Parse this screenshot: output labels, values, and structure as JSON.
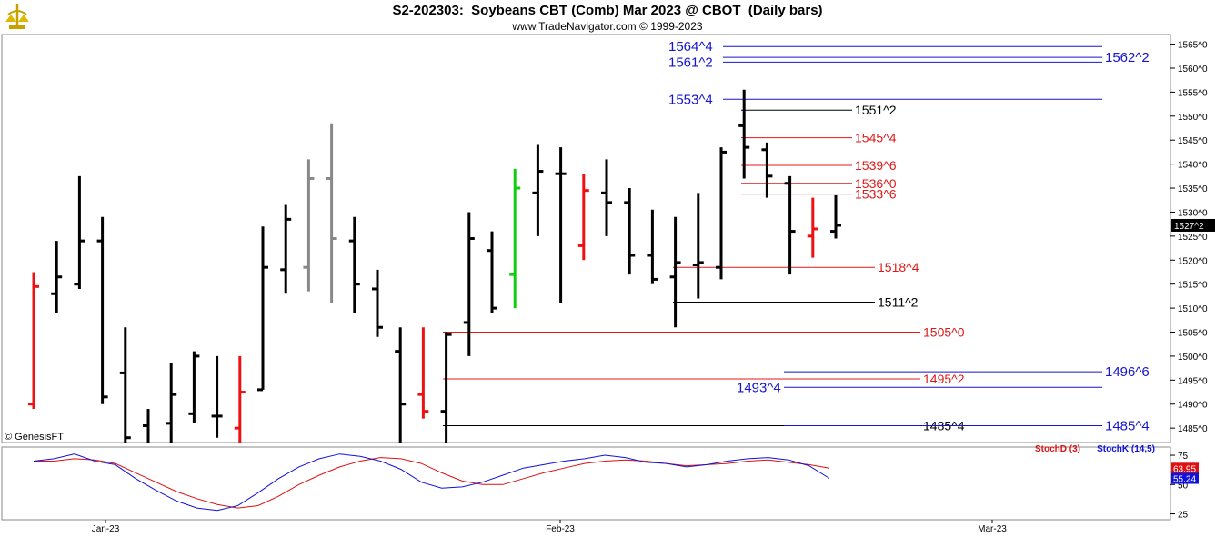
{
  "header": {
    "title": "S2-202303:  Soybeans CBT (Comb) Mar 2023 @ CBOT  (Daily bars)",
    "subtitle": "www.TradeNavigator.com © 1999-2023",
    "copyright": "© GenesisFT"
  },
  "chart_data": [
    {
      "type": "ohlc",
      "price_format": "cents^eighths",
      "ylim": [
        1482.0,
        1567.0
      ],
      "yticks": [
        "1565^0",
        "1560^0",
        "1555^0",
        "1550^0",
        "1545^0",
        "1540^0",
        "1535^0",
        "1530^0",
        "1525^0",
        "1520^0",
        "1515^0",
        "1510^0",
        "1505^0",
        "1500^0",
        "1495^0",
        "1490^0",
        "1485^0"
      ],
      "ytick_values": [
        1565,
        1560,
        1555,
        1550,
        1545,
        1540,
        1535,
        1530,
        1525,
        1520,
        1515,
        1510,
        1505,
        1500,
        1495,
        1490,
        1485
      ],
      "last_price_label": "1527^2",
      "last_price": 1527.25,
      "bar_colors": {
        "normal": "#000000",
        "red": "#ee1111",
        "green": "#11cc11",
        "gray": "#888888"
      },
      "bars": [
        {
          "o": 1490.0,
          "h": 1517.5,
          "l": 1489.0,
          "c": 1514.5,
          "color": "red"
        },
        {
          "o": 1513.0,
          "h": 1524.0,
          "l": 1509.0,
          "c": 1516.5,
          "color": "normal"
        },
        {
          "o": 1515.0,
          "h": 1537.5,
          "l": 1514.0,
          "c": 1524.0,
          "color": "normal"
        },
        {
          "o": 1524.0,
          "h": 1529.0,
          "l": 1490.0,
          "c": 1491.5,
          "color": "normal"
        },
        {
          "o": 1496.5,
          "h": 1506.0,
          "l": 1474.0,
          "c": 1483.0,
          "color": "normal"
        },
        {
          "o": 1485.5,
          "h": 1489.0,
          "l": 1475.0,
          "c": 1479.0,
          "color": "normal"
        },
        {
          "o": 1486.0,
          "h": 1498.5,
          "l": 1478.0,
          "c": 1492.0,
          "color": "normal"
        },
        {
          "o": 1488.0,
          "h": 1501.0,
          "l": 1486.0,
          "c": 1500.0,
          "color": "normal"
        },
        {
          "o": 1487.5,
          "h": 1500.0,
          "l": 1483.0,
          "c": 1487.5,
          "color": "normal"
        },
        {
          "o": 1485.0,
          "h": 1500.0,
          "l": 1476.0,
          "c": 1492.5,
          "color": "red"
        },
        {
          "o": 1493.0,
          "h": 1527.0,
          "l": 1493.0,
          "c": 1518.5,
          "color": "normal"
        },
        {
          "o": 1518.0,
          "h": 1531.5,
          "l": 1513.0,
          "c": 1528.5,
          "color": "normal"
        },
        {
          "o": 1518.5,
          "h": 1541.0,
          "l": 1513.5,
          "c": 1537.0,
          "color": "gray"
        },
        {
          "o": 1537.0,
          "h": 1548.5,
          "l": 1511.0,
          "c": 1524.5,
          "color": "gray"
        },
        {
          "o": 1524.0,
          "h": 1529.0,
          "l": 1509.0,
          "c": 1515.0,
          "color": "normal"
        },
        {
          "o": 1514.0,
          "h": 1518.0,
          "l": 1504.0,
          "c": 1506.0,
          "color": "normal"
        },
        {
          "o": 1501.0,
          "h": 1506.0,
          "l": 1480.0,
          "c": 1490.0,
          "color": "normal"
        },
        {
          "o": 1492.0,
          "h": 1506.0,
          "l": 1487.0,
          "c": 1488.5,
          "color": "red"
        },
        {
          "o": 1488.5,
          "h": 1505.0,
          "l": 1482.0,
          "c": 1504.5,
          "color": "normal"
        },
        {
          "o": 1507.0,
          "h": 1530.0,
          "l": 1500.0,
          "c": 1524.5,
          "color": "normal"
        },
        {
          "o": 1522.0,
          "h": 1526.0,
          "l": 1509.0,
          "c": 1510.0,
          "color": "normal"
        },
        {
          "o": 1517.0,
          "h": 1539.0,
          "l": 1510.0,
          "c": 1535.0,
          "color": "green"
        },
        {
          "o": 1534.0,
          "h": 1544.0,
          "l": 1525.0,
          "c": 1538.5,
          "color": "normal"
        },
        {
          "o": 1538.0,
          "h": 1543.5,
          "l": 1511.0,
          "c": 1538.0,
          "color": "normal"
        },
        {
          "o": 1523.0,
          "h": 1538.0,
          "l": 1520.0,
          "c": 1534.5,
          "color": "red"
        },
        {
          "o": 1534.0,
          "h": 1541.0,
          "l": 1525.0,
          "c": 1532.0,
          "color": "normal"
        },
        {
          "o": 1532.0,
          "h": 1535.0,
          "l": 1517.0,
          "c": 1521.0,
          "color": "normal"
        },
        {
          "o": 1521.0,
          "h": 1530.5,
          "l": 1515.0,
          "c": 1516.0,
          "color": "normal"
        },
        {
          "o": 1516.5,
          "h": 1529.0,
          "l": 1506.0,
          "c": 1519.5,
          "color": "normal"
        },
        {
          "o": 1519.0,
          "h": 1534.0,
          "l": 1512.0,
          "c": 1519.5,
          "color": "normal"
        },
        {
          "o": 1518.5,
          "h": 1543.5,
          "l": 1516.0,
          "c": 1542.5,
          "color": "normal"
        },
        {
          "o": 1548.0,
          "h": 1555.5,
          "l": 1537.0,
          "c": 1543.5,
          "color": "normal"
        },
        {
          "o": 1543.0,
          "h": 1544.5,
          "l": 1533.0,
          "c": 1537.5,
          "color": "normal"
        },
        {
          "o": 1536.0,
          "h": 1537.5,
          "l": 1517.0,
          "c": 1526.0,
          "color": "normal"
        },
        {
          "o": 1525.0,
          "h": 1533.0,
          "l": 1520.5,
          "c": 1526.5,
          "color": "red"
        },
        {
          "o": 1526.0,
          "h": 1533.5,
          "l": 1524.5,
          "c": 1527.25,
          "color": "normal"
        }
      ],
      "levels": [
        {
          "label": "1564^4",
          "value": 1564.5,
          "color": "blue",
          "label_side": "left"
        },
        {
          "label": "1561^2",
          "value": 1561.25,
          "color": "blue",
          "label_side": "left"
        },
        {
          "label": "1562^2",
          "value": 1562.25,
          "color": "blue",
          "label_side": "right"
        },
        {
          "label": "1553^4",
          "value": 1553.5,
          "color": "blue",
          "label_side": "left"
        },
        {
          "label": "1551^2",
          "value": 1551.25,
          "color": "black",
          "label_side": "right"
        },
        {
          "label": "1545^4",
          "value": 1545.5,
          "color": "red",
          "label_side": "right"
        },
        {
          "label": "1539^6",
          "value": 1539.75,
          "color": "red",
          "label_side": "right"
        },
        {
          "label": "1536^0",
          "value": 1536.0,
          "color": "red",
          "label_side": "right"
        },
        {
          "label": "1533^6",
          "value": 1533.75,
          "color": "red",
          "label_side": "right"
        },
        {
          "label": "1518^4",
          "value": 1518.5,
          "color": "red",
          "label_side": "right"
        },
        {
          "label": "1511^2",
          "value": 1511.25,
          "color": "black",
          "label_side": "right"
        },
        {
          "label": "1505^0",
          "value": 1505.0,
          "color": "red",
          "label_side": "right"
        },
        {
          "label": "1496^6",
          "value": 1496.75,
          "color": "blue",
          "label_side": "right"
        },
        {
          "label": "1495^2",
          "value": 1495.25,
          "color": "red",
          "label_side": "right"
        },
        {
          "label": "1493^4",
          "value": 1493.5,
          "color": "blue",
          "label_side": "left"
        },
        {
          "label": "1485^4",
          "value": 1485.5,
          "color": "black",
          "label_side": "right"
        },
        {
          "label": "1485^4",
          "value": 1485.5,
          "color": "blue",
          "label_side": "right"
        }
      ]
    },
    {
      "type": "line",
      "title_d": "StochD (3)",
      "title_k": "StochK (14,5)",
      "ylim": [
        20,
        82
      ],
      "yticks": [
        "75",
        "50",
        "25"
      ],
      "ytick_values": [
        75,
        50,
        25
      ],
      "series": [
        {
          "name": "StochD (3)",
          "color": "#dd1111",
          "last_label": "63.95",
          "values": [
            70,
            70,
            72,
            71,
            68,
            60,
            52,
            44,
            38,
            33,
            30,
            32,
            40,
            50,
            58,
            65,
            70,
            73,
            72,
            68,
            60,
            53,
            50,
            50,
            55,
            60,
            64,
            68,
            70,
            71,
            70,
            68,
            66,
            67,
            68,
            70,
            71,
            69,
            67,
            63.95
          ]
        },
        {
          "name": "StochK (14,5)",
          "color": "#1111dd",
          "last_label": "55.24",
          "values": [
            70,
            72,
            76,
            70,
            67,
            55,
            45,
            36,
            30,
            28,
            32,
            43,
            55,
            65,
            72,
            76,
            74,
            70,
            63,
            52,
            47,
            48,
            52,
            58,
            64,
            67,
            70,
            72,
            75,
            73,
            69,
            68,
            65,
            67,
            70,
            72,
            73,
            71,
            66,
            55.24
          ]
        }
      ]
    }
  ],
  "x_axis": {
    "labels": [
      "Jan-23",
      "Feb-23",
      "Mar-23"
    ]
  }
}
